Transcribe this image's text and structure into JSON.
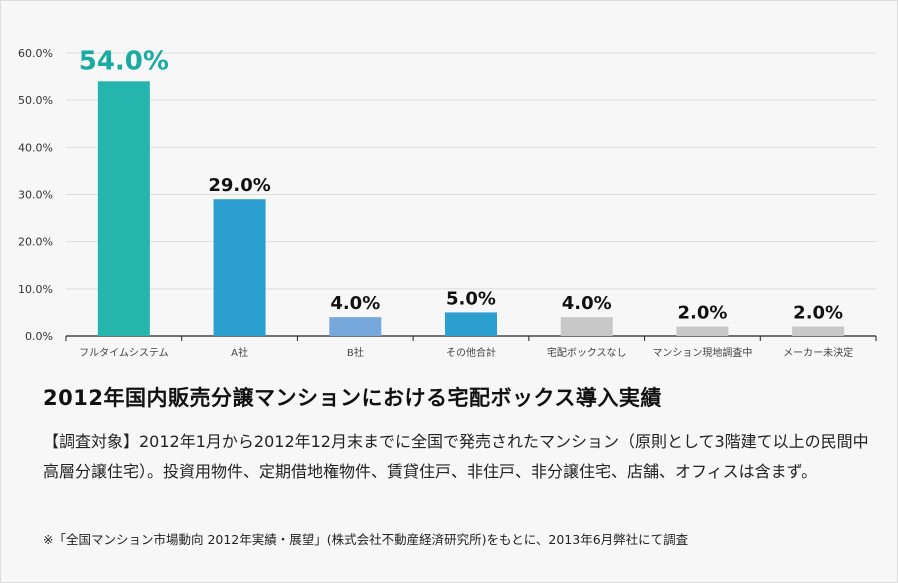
{
  "chart_data": {
    "type": "bar",
    "categories": [
      "フルタイムシステム",
      "A社",
      "B社",
      "その他合計",
      "宅配ボックスなし",
      "マンション現地調査中",
      "メーカー未決定"
    ],
    "values": [
      54.0,
      29.0,
      4.0,
      5.0,
      4.0,
      2.0,
      2.0
    ],
    "data_labels": [
      "54.0%",
      "29.0%",
      "4.0%",
      "5.0%",
      "4.0%",
      "2.0%",
      "2.0%"
    ],
    "bar_colors": [
      "#26b5ad",
      "#2a9fd0",
      "#76a8dc",
      "#2a9fd0",
      "#c8c8c8",
      "#c8c8c8",
      "#c8c8c8"
    ],
    "highlight_label_color": "#18aaa3",
    "yticks": [
      "0.0%",
      "10.0%",
      "20.0%",
      "30.0%",
      "40.0%",
      "50.0%",
      "60.0%"
    ],
    "ylim": [
      0,
      60
    ],
    "grid": true,
    "title": "2012年国内販売分譲マンションにおける宅配ボックス導入実績"
  },
  "description": "【調査対象】2012年1月から2012年12月末までに全国で発売されたマンション（原則として3階建て以上の民間中高層分譲住宅）。投資用物件、定期借地権物件、賃貸住戸、非住戸、非分譲住宅、店舗、オフィスは含まず。",
  "note": "※「全国マンション市場動向 2012年実績・展望」(株式会社不動産経済研究所)をもとに、2013年6月弊社にて調査"
}
